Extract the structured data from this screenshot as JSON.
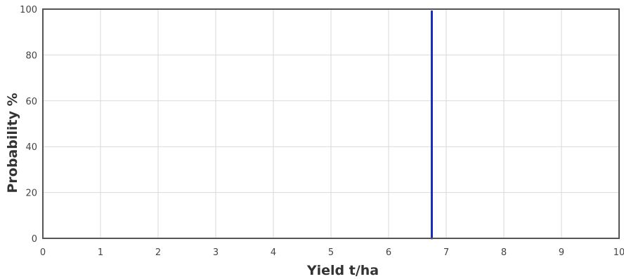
{
  "chart_data": {
    "type": "line",
    "title": "",
    "xlabel": "Yield t/ha",
    "ylabel": "Probability %",
    "xlim": [
      0,
      10
    ],
    "ylim": [
      0,
      100
    ],
    "x_ticks": [
      0,
      1,
      2,
      3,
      4,
      5,
      6,
      7,
      8,
      9,
      10
    ],
    "y_ticks": [
      0,
      20,
      40,
      60,
      80,
      100
    ],
    "grid": true,
    "legend": "none",
    "series": [
      {
        "color": "#1a2fbf",
        "points": [
          {
            "x": 6.75,
            "y": 0
          },
          {
            "x": 6.75,
            "y": 99
          }
        ]
      }
    ]
  }
}
